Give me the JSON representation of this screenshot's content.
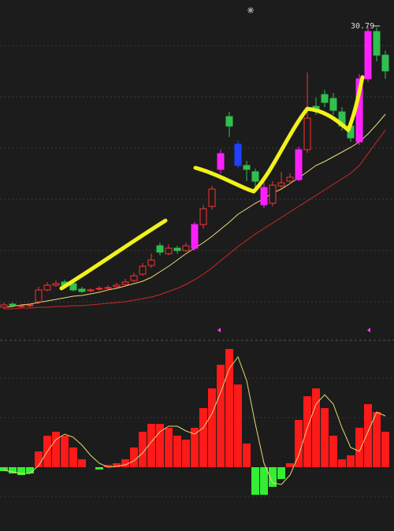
{
  "chart_data": [
    {
      "type": "candlestick",
      "open": [
        13.0,
        13.2,
        13.05,
        13.1,
        13.35,
        14.1,
        14.4,
        14.6,
        14.5,
        14.15,
        14.05,
        14.15,
        14.2,
        14.3,
        14.45,
        14.7,
        15.1,
        15.65,
        16.9,
        16.4,
        16.75,
        16.6,
        16.75,
        18.25,
        19.4,
        21.75,
        25.1,
        23.35,
        22.0,
        21.6,
        20.6,
        19.6,
        20.7,
        21.0,
        21.1,
        23.0,
        25.75,
        26.5,
        26.25,
        25.4,
        24.5,
        23.5,
        27.5,
        30.5,
        29.0
      ],
      "high": [
        13.3,
        13.3,
        13.2,
        13.25,
        14.3,
        14.6,
        14.7,
        14.75,
        14.6,
        14.3,
        14.2,
        14.35,
        14.4,
        14.55,
        14.8,
        15.2,
        15.8,
        16.4,
        17.1,
        17.0,
        16.9,
        17.1,
        18.4,
        19.5,
        20.7,
        23.0,
        25.4,
        23.6,
        22.3,
        21.8,
        20.9,
        21.0,
        21.6,
        21.5,
        23.2,
        27.9,
        26.3,
        26.8,
        26.6,
        25.7,
        24.8,
        27.8,
        30.79,
        30.75,
        29.3
      ],
      "low": [
        12.9,
        13.0,
        12.95,
        13.0,
        13.2,
        14.0,
        14.3,
        14.3,
        14.0,
        13.9,
        13.95,
        14.05,
        14.1,
        14.2,
        14.35,
        14.6,
        15.0,
        15.5,
        16.3,
        16.3,
        16.4,
        16.5,
        16.6,
        18.0,
        19.2,
        21.5,
        23.8,
        21.8,
        21.0,
        20.6,
        19.3,
        19.4,
        20.5,
        20.8,
        21.0,
        22.8,
        25.2,
        25.7,
        25.2,
        24.2,
        23.5,
        23.3,
        27.3,
        28.6,
        27.5
      ],
      "close": [
        13.15,
        13.1,
        13.1,
        13.15,
        14.1,
        14.4,
        14.5,
        14.4,
        14.1,
        14.0,
        14.1,
        14.2,
        14.25,
        14.4,
        14.6,
        15.0,
        15.6,
        16.0,
        16.5,
        16.75,
        16.6,
        16.9,
        18.25,
        19.25,
        20.5,
        22.75,
        24.5,
        22.0,
        21.75,
        21.0,
        19.5,
        20.75,
        20.9,
        21.25,
        23.0,
        25.0,
        25.5,
        26.0,
        25.5,
        24.5,
        23.75,
        27.5,
        30.5,
        29.0,
        28.0
      ],
      "up_color": "#ff3030",
      "colors": [
        "#ff3030",
        "#30c050",
        "#ff3030",
        "#ff3030",
        "#ff3030",
        "#ff3030",
        "#ff3030",
        "#30c050",
        "#30c050",
        "#30c050",
        "#ff3030",
        "#ff3030",
        "#ff3030",
        "#ff3030",
        "#ff3030",
        "#ff3030",
        "#ff3030",
        "#ff3030",
        "#30c050",
        "#ff3030",
        "#30c050",
        "#ff3030",
        "#ff20ff",
        "#ff3030",
        "#ff3030",
        "#ff20ff",
        "#30c050",
        "#2040ff",
        "#30c050",
        "#30c050",
        "#ff20ff",
        "#ff3030",
        "#ff3030",
        "#ff3030",
        "#ff20ff",
        "#ff3030",
        "#30c050",
        "#30c050",
        "#30c050",
        "#30c050",
        "#30c050",
        "#ff20ff",
        "#ff20ff",
        "#30c050",
        "#30c050"
      ],
      "series": [
        {
          "color": "#e8e070",
          "values": [
            13.0,
            13.05,
            13.15,
            13.2,
            13.3,
            13.4,
            13.5,
            13.6,
            13.7,
            13.75,
            13.85,
            13.95,
            14.1,
            14.2,
            14.35,
            14.5,
            14.65,
            14.9,
            15.25,
            15.6,
            16.0,
            16.4,
            16.75,
            17.1,
            17.5,
            17.95,
            18.4,
            18.9,
            19.25,
            19.6,
            19.9,
            20.25,
            20.5,
            20.85,
            21.2,
            21.6,
            22.0,
            22.25,
            22.55,
            22.85,
            23.15,
            23.5,
            24.0,
            24.6,
            25.25
          ]
        },
        {
          "color": "#d02828",
          "values": [
            12.9,
            12.9,
            12.95,
            12.95,
            13.0,
            13.0,
            13.05,
            13.05,
            13.1,
            13.1,
            13.15,
            13.2,
            13.25,
            13.3,
            13.35,
            13.45,
            13.55,
            13.65,
            13.8,
            14.0,
            14.2,
            14.45,
            14.75,
            15.1,
            15.5,
            15.95,
            16.4,
            16.85,
            17.25,
            17.65,
            18.0,
            18.35,
            18.7,
            19.05,
            19.4,
            19.75,
            20.1,
            20.45,
            20.8,
            21.15,
            21.5,
            22.0,
            22.75,
            23.5,
            24.25
          ]
        }
      ],
      "ylim": [
        12.5,
        31.5
      ]
    },
    {
      "type": "bar",
      "values": [
        -5,
        -8,
        -10,
        -8,
        20,
        40,
        45,
        40,
        25,
        10,
        0,
        -3,
        3,
        5,
        10,
        25,
        45,
        55,
        55,
        50,
        40,
        35,
        50,
        75,
        100,
        130,
        150,
        105,
        30,
        -35,
        -35,
        -25,
        -15,
        5,
        60,
        90,
        100,
        75,
        40,
        10,
        15,
        50,
        80,
        70,
        45
      ],
      "positive_color": "#ff1a1a",
      "negative_color": "#33ee33",
      "line": {
        "color": "#e8d870",
        "values": [
          -4,
          -6,
          -8,
          -8,
          2,
          20,
          35,
          42,
          38,
          28,
          15,
          5,
          0,
          1,
          3,
          8,
          18,
          32,
          45,
          52,
          52,
          46,
          42,
          50,
          68,
          95,
          125,
          140,
          110,
          55,
          5,
          -20,
          -22,
          -10,
          15,
          50,
          80,
          92,
          80,
          50,
          25,
          20,
          45,
          70,
          65
        ]
      },
      "ylim": [
        -45,
        160
      ]
    }
  ]
}
